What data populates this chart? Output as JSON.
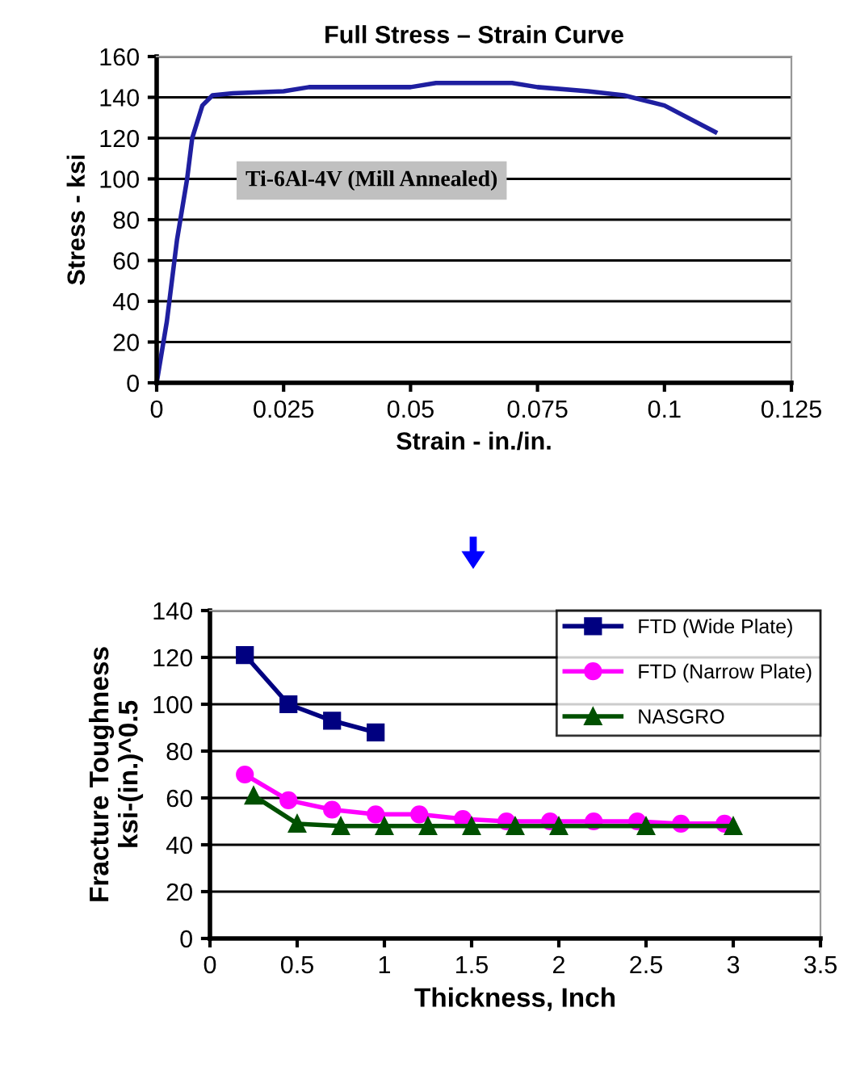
{
  "chart_data": [
    {
      "type": "line",
      "title": "Full Stress – Strain Curve",
      "xlabel": "Strain - in./in.",
      "ylabel": "Stress - ksi",
      "annotations": [
        "Ti-6Al-4V (Mill Annealed)"
      ],
      "x": [
        0,
        0.002,
        0.004,
        0.006,
        0.007,
        0.009,
        0.011,
        0.015,
        0.025,
        0.03,
        0.05,
        0.055,
        0.07,
        0.075,
        0.085,
        0.092,
        0.1,
        0.11
      ],
      "series": [
        {
          "color": "#1f1fa0",
          "values": [
            0,
            30,
            70,
            100,
            120,
            136,
            141,
            142,
            143,
            145,
            145,
            147,
            147,
            145,
            143,
            141,
            136,
            123
          ]
        }
      ],
      "xlim": [
        0,
        0.125
      ],
      "xticks": [
        0,
        0.025,
        0.05,
        0.075,
        0.1,
        0.125
      ],
      "ylim": [
        0,
        160
      ],
      "yticks": [
        0,
        20,
        40,
        60,
        80,
        100,
        120,
        140,
        160
      ],
      "grid": "y",
      "marker": "none",
      "line_style": "solid"
    },
    {
      "type": "line",
      "xlabel": "Thickness, Inch",
      "ylabel": "Fracture Toughness\nksi-(in.)^0.5",
      "series": [
        {
          "name": "FTD (Wide Plate)",
          "color": "#000080",
          "marker": "square",
          "x": [
            0.2,
            0.45,
            0.7,
            0.95
          ],
          "values": [
            121,
            100,
            93,
            88
          ]
        },
        {
          "name": "FTD (Narrow Plate)",
          "color": "#ff00ff",
          "marker": "circle",
          "x": [
            0.2,
            0.45,
            0.7,
            0.95,
            1.2,
            1.45,
            1.7,
            1.95,
            2.2,
            2.45,
            2.7,
            2.95
          ],
          "values": [
            70,
            59,
            55,
            53,
            53,
            51,
            50,
            50,
            50,
            50,
            49,
            49
          ]
        },
        {
          "name": "NASGRO",
          "color": "#005000",
          "marker": "triangle",
          "x": [
            0.25,
            0.5,
            0.75,
            1,
            1.25,
            1.5,
            1.75,
            2,
            2.5,
            3
          ],
          "values": [
            61,
            49,
            48,
            48,
            48,
            48,
            48,
            48,
            48,
            48
          ]
        }
      ],
      "xlim": [
        0,
        3.5
      ],
      "xticks": [
        0,
        0.5,
        1,
        1.5,
        2,
        2.5,
        3,
        3.5
      ],
      "ylim": [
        0,
        140
      ],
      "yticks": [
        0,
        20,
        40,
        60,
        80,
        100,
        120,
        140
      ],
      "grid": "y",
      "legend": "top right",
      "line_style": "solid"
    }
  ]
}
